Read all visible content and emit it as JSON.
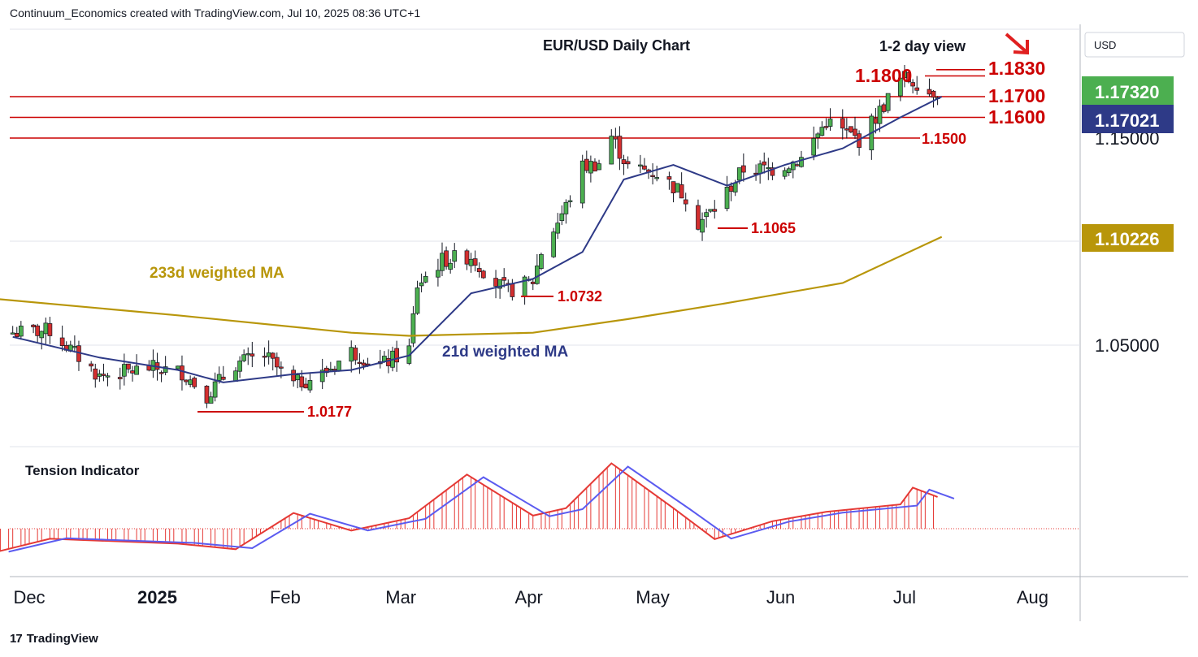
{
  "header": {
    "attribution": "Continuum_Economics created with TradingView.com, Jul 10, 2025 08:36 UTC+1"
  },
  "footer": {
    "brand": "TradingView",
    "logo_glyph": "17"
  },
  "chart_data": {
    "type": "candlestick",
    "title": "EUR/USD Daily Chart",
    "view_label": "1-2 day view",
    "view_arrow": "down",
    "currency": "USD",
    "x_ticks": [
      "Dec",
      "2025",
      "Feb",
      "Mar",
      "Apr",
      "May",
      "Jun",
      "Jul",
      "Aug"
    ],
    "y_ticks": [
      "1.15000",
      "1.05000"
    ],
    "price_badges": [
      {
        "label": "1.17320",
        "color": "#4caf50"
      },
      {
        "label": "1.17021",
        "color": "#2e3a87"
      },
      {
        "label": "1.10226",
        "color": "#b8960a"
      }
    ],
    "levels": [
      {
        "label": "1.1830",
        "value": 1.183
      },
      {
        "label": "1.1800",
        "value": 1.18
      },
      {
        "label": "1.1700",
        "value": 1.17
      },
      {
        "label": "1.1600",
        "value": 1.16
      },
      {
        "label": "1.1500",
        "value": 1.15
      }
    ],
    "lows": [
      {
        "label": "1.1065",
        "value": 1.1065
      },
      {
        "label": "1.0732",
        "value": 1.0732
      },
      {
        "label": "1.0177",
        "value": 1.0177
      }
    ],
    "series_labels": {
      "ma233": "233d weighted MA",
      "ma21": "21d weighted MA",
      "tension": "Tension Indicator"
    },
    "colors": {
      "up": "#4caf50",
      "down": "#d32f2f",
      "level": "#cc0000",
      "ma21": "#2e3a87",
      "ma233": "#b8960a",
      "tension_red": "#e53935",
      "tension_blue": "#5b5bf0"
    },
    "close_path": [
      [
        "2024-11-27",
        1.056
      ],
      [
        "2024-12-06",
        1.057
      ],
      [
        "2024-12-18",
        1.035
      ],
      [
        "2024-12-30",
        1.039
      ],
      [
        "2025-01-07",
        1.037
      ],
      [
        "2025-01-13",
        1.026
      ],
      [
        "2025-01-20",
        1.041
      ],
      [
        "2025-01-27",
        1.045
      ],
      [
        "2025-02-03",
        1.031
      ],
      [
        "2025-02-10",
        1.036
      ],
      [
        "2025-02-17",
        1.047
      ],
      [
        "2025-02-24",
        1.04
      ],
      [
        "2025-03-03",
        1.048
      ],
      [
        "2025-03-05",
        1.079
      ],
      [
        "2025-03-11",
        1.091
      ],
      [
        "2025-03-18",
        1.093
      ],
      [
        "2025-03-24",
        1.08
      ],
      [
        "2025-03-27",
        1.076
      ],
      [
        "2025-04-02",
        1.081
      ],
      [
        "2025-04-04",
        1.095
      ],
      [
        "2025-04-10",
        1.117
      ],
      [
        "2025-04-14",
        1.136
      ],
      [
        "2025-04-18",
        1.138
      ],
      [
        "2025-04-21",
        1.151
      ],
      [
        "2025-04-25",
        1.136
      ],
      [
        "2025-05-02",
        1.133
      ],
      [
        "2025-05-09",
        1.122
      ],
      [
        "2025-05-12",
        1.109
      ],
      [
        "2025-05-16",
        1.116
      ],
      [
        "2025-05-23",
        1.135
      ],
      [
        "2025-05-30",
        1.135
      ],
      [
        "2025-06-06",
        1.14
      ],
      [
        "2025-06-12",
        1.158
      ],
      [
        "2025-06-20",
        1.149
      ],
      [
        "2025-06-24",
        1.16
      ],
      [
        "2025-06-30",
        1.178
      ],
      [
        "2025-07-01",
        1.179
      ],
      [
        "2025-07-04",
        1.177
      ],
      [
        "2025-07-07",
        1.172
      ],
      [
        "2025-07-09",
        1.173
      ]
    ],
    "ma21_path": [
      [
        "2024-11-27",
        1.054
      ],
      [
        "2024-12-18",
        1.044
      ],
      [
        "2025-01-06",
        1.038
      ],
      [
        "2025-01-17",
        1.032
      ],
      [
        "2025-02-03",
        1.036
      ],
      [
        "2025-02-17",
        1.038
      ],
      [
        "2025-03-03",
        1.045
      ],
      [
        "2025-03-18",
        1.075
      ],
      [
        "2025-04-02",
        1.082
      ],
      [
        "2025-04-14",
        1.095
      ],
      [
        "2025-04-24",
        1.13
      ],
      [
        "2025-05-06",
        1.137
      ],
      [
        "2025-05-19",
        1.127
      ],
      [
        "2025-06-02",
        1.137
      ],
      [
        "2025-06-16",
        1.145
      ],
      [
        "2025-06-30",
        1.16
      ],
      [
        "2025-07-10",
        1.17
      ]
    ],
    "ma233_path": [
      [
        "2024-11-22",
        1.0725
      ],
      [
        "2025-01-06",
        1.0644
      ],
      [
        "2025-02-17",
        1.056
      ],
      [
        "2025-03-03",
        1.0545
      ],
      [
        "2025-04-02",
        1.056
      ],
      [
        "2025-04-25",
        1.0626
      ],
      [
        "2025-05-19",
        1.0703
      ],
      [
        "2025-06-16",
        1.08
      ],
      [
        "2025-07-10",
        1.1023
      ]
    ],
    "tension_path": [
      [
        "2024-11-22",
        -0.65
      ],
      [
        "2024-12-06",
        -0.27
      ],
      [
        "2025-01-06",
        -0.4
      ],
      [
        "2025-01-20",
        -0.55
      ],
      [
        "2025-02-03",
        0.42
      ],
      [
        "2025-02-17",
        -0.05
      ],
      [
        "2025-03-03",
        0.28
      ],
      [
        "2025-03-17",
        1.45
      ],
      [
        "2025-04-02",
        0.35
      ],
      [
        "2025-04-10",
        0.55
      ],
      [
        "2025-04-21",
        1.75
      ],
      [
        "2025-05-06",
        0.55
      ],
      [
        "2025-05-16",
        -0.28
      ],
      [
        "2025-05-30",
        0.2
      ],
      [
        "2025-06-12",
        0.45
      ],
      [
        "2025-06-30",
        0.65
      ],
      [
        "2025-07-03",
        1.1
      ],
      [
        "2025-07-09",
        0.85
      ]
    ],
    "x_ticks_dates": [
      "2024-12-01",
      "2025-01-01",
      "2025-02-01",
      "2025-03-01",
      "2025-04-01",
      "2025-05-01",
      "2025-06-01",
      "2025-07-01",
      "2025-08-01"
    ],
    "ylim": [
      1.0,
      1.2
    ]
  }
}
